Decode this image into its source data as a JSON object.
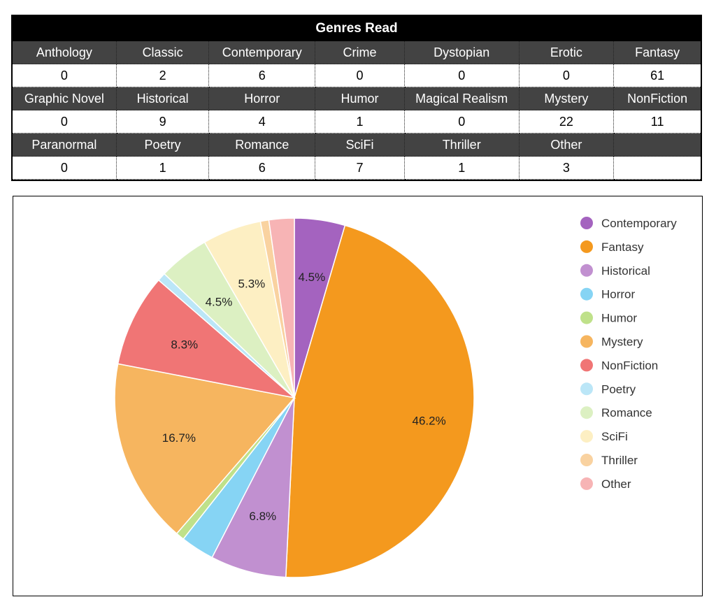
{
  "table": {
    "title": "Genres Read",
    "rows": [
      {
        "headers": [
          "Anthology",
          "Classic",
          "Contemporary",
          "Crime",
          "Dystopian",
          "Erotic",
          "Fantasy"
        ],
        "values": [
          "0",
          "2",
          "6",
          "0",
          "0",
          "0",
          "61"
        ]
      },
      {
        "headers": [
          "Graphic Novel",
          "Historical",
          "Horror",
          "Humor",
          "Magical Realism",
          "Mystery",
          "NonFiction"
        ],
        "values": [
          "0",
          "9",
          "4",
          "1",
          "0",
          "22",
          "11"
        ]
      },
      {
        "headers": [
          "Paranormal",
          "Poetry",
          "Romance",
          "SciFi",
          "Thriller",
          "Other",
          ""
        ],
        "values": [
          "0",
          "1",
          "6",
          "7",
          "1",
          "3",
          ""
        ]
      }
    ]
  },
  "chart_data": {
    "type": "pie",
    "title": "",
    "legend_position": "right",
    "slices": [
      {
        "label": "Contemporary",
        "value": 6,
        "percent_label": "4.5%",
        "color": "#a463bf"
      },
      {
        "label": "Fantasy",
        "value": 61,
        "percent_label": "46.2%",
        "color": "#f4991e"
      },
      {
        "label": "Historical",
        "value": 9,
        "percent_label": "6.8%",
        "color": "#c190d0"
      },
      {
        "label": "Horror",
        "value": 4,
        "percent_label": "",
        "color": "#86d4f4"
      },
      {
        "label": "Humor",
        "value": 1,
        "percent_label": "",
        "color": "#bfe18a"
      },
      {
        "label": "Mystery",
        "value": 22,
        "percent_label": "16.7%",
        "color": "#f6b55f"
      },
      {
        "label": "NonFiction",
        "value": 11,
        "percent_label": "8.3%",
        "color": "#f07575"
      },
      {
        "label": "Poetry",
        "value": 1,
        "percent_label": "",
        "color": "#bbe6f7"
      },
      {
        "label": "Romance",
        "value": 6,
        "percent_label": "4.5%",
        "color": "#dcf0c2"
      },
      {
        "label": "SciFi",
        "value": 7,
        "percent_label": "5.3%",
        "color": "#fdefc3"
      },
      {
        "label": "Thriller",
        "value": 1,
        "percent_label": "",
        "color": "#f9d2a0"
      },
      {
        "label": "Other",
        "value": 3,
        "percent_label": "",
        "color": "#f7b4b5"
      }
    ]
  }
}
